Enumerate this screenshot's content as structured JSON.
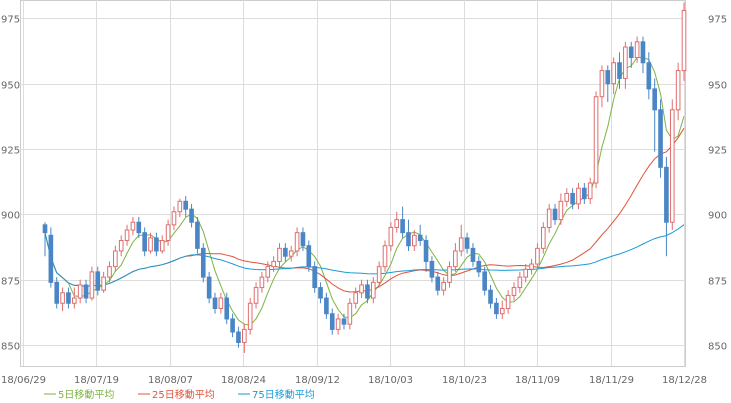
{
  "chart_data": {
    "type": "candlestick",
    "x_ticks": [
      "18/06/29",
      "18/07/19",
      "18/08/07",
      "18/08/24",
      "18/09/12",
      "18/10/03",
      "18/10/23",
      "18/11/09",
      "18/11/29",
      "18/12/28"
    ],
    "y_ticks": [
      850,
      875,
      900,
      925,
      950,
      975
    ],
    "ylim": [
      842,
      982
    ],
    "grid": true,
    "legend_position": "bottom-left",
    "legend": [
      {
        "name": "5日移動平均",
        "color": "#7cb342"
      },
      {
        "name": "25日移動平均",
        "color": "#e0533a"
      },
      {
        "name": "75日移動平均",
        "color": "#1a9ad6"
      }
    ],
    "up_color": "#e06d6d",
    "down_color": "#4a86c5",
    "candles": [
      [
        896,
        893,
        884,
        897
      ],
      [
        892,
        874,
        872,
        895
      ],
      [
        874,
        866,
        864,
        876
      ],
      [
        866,
        870,
        863,
        872
      ],
      [
        870,
        866,
        864,
        872
      ],
      [
        866,
        868,
        864,
        872
      ],
      [
        868,
        873,
        866,
        875
      ],
      [
        873,
        868,
        866,
        875
      ],
      [
        868,
        878,
        867,
        880
      ],
      [
        878,
        871,
        869,
        880
      ],
      [
        871,
        876,
        870,
        878
      ],
      [
        876,
        880,
        874,
        882
      ],
      [
        880,
        886,
        878,
        888
      ],
      [
        886,
        890,
        884,
        892
      ],
      [
        890,
        894,
        888,
        896
      ],
      [
        894,
        897,
        892,
        899
      ],
      [
        897,
        893,
        891,
        899
      ],
      [
        893,
        886,
        884,
        895
      ],
      [
        886,
        891,
        885,
        893
      ],
      [
        891,
        886,
        884,
        893
      ],
      [
        886,
        890,
        885,
        892
      ],
      [
        890,
        896,
        888,
        898
      ],
      [
        896,
        901,
        894,
        903
      ],
      [
        901,
        905,
        899,
        906
      ],
      [
        905,
        902,
        899,
        907
      ],
      [
        902,
        897,
        895,
        904
      ],
      [
        897,
        887,
        885,
        899
      ],
      [
        887,
        876,
        874,
        889
      ],
      [
        876,
        868,
        866,
        878
      ],
      [
        868,
        864,
        862,
        870
      ],
      [
        864,
        868,
        862,
        870
      ],
      [
        868,
        860,
        858,
        870
      ],
      [
        860,
        855,
        853,
        862
      ],
      [
        855,
        851,
        849,
        857
      ],
      [
        851,
        856,
        847,
        858
      ],
      [
        856,
        866,
        854,
        868
      ],
      [
        866,
        872,
        864,
        874
      ],
      [
        872,
        876,
        870,
        878
      ],
      [
        876,
        880,
        874,
        882
      ],
      [
        880,
        882,
        878,
        884
      ],
      [
        882,
        887,
        880,
        889
      ],
      [
        887,
        884,
        882,
        889
      ],
      [
        884,
        886,
        882,
        888
      ],
      [
        886,
        893,
        884,
        895
      ],
      [
        893,
        888,
        886,
        895
      ],
      [
        888,
        880,
        878,
        890
      ],
      [
        880,
        872,
        870,
        882
      ],
      [
        872,
        868,
        866,
        874
      ],
      [
        868,
        862,
        860,
        870
      ],
      [
        862,
        856,
        854,
        864
      ],
      [
        856,
        860,
        854,
        862
      ],
      [
        860,
        858,
        856,
        862
      ],
      [
        858,
        866,
        856,
        868
      ],
      [
        866,
        870,
        864,
        872
      ],
      [
        870,
        873,
        868,
        875
      ],
      [
        873,
        868,
        866,
        875
      ],
      [
        868,
        874,
        866,
        876
      ],
      [
        874,
        880,
        872,
        882
      ],
      [
        880,
        888,
        878,
        890
      ],
      [
        888,
        895,
        886,
        897
      ],
      [
        895,
        898,
        893,
        901
      ],
      [
        898,
        893,
        891,
        903
      ],
      [
        893,
        888,
        886,
        898
      ],
      [
        888,
        892,
        886,
        894
      ],
      [
        892,
        890,
        888,
        896
      ],
      [
        890,
        882,
        878,
        892
      ],
      [
        882,
        876,
        874,
        884
      ],
      [
        876,
        871,
        869,
        878
      ],
      [
        871,
        874,
        869,
        876
      ],
      [
        874,
        880,
        872,
        882
      ],
      [
        880,
        886,
        878,
        889
      ],
      [
        886,
        891,
        884,
        896
      ],
      [
        891,
        887,
        885,
        893
      ],
      [
        887,
        882,
        880,
        889
      ],
      [
        882,
        878,
        876,
        884
      ],
      [
        878,
        871,
        869,
        880
      ],
      [
        871,
        866,
        864,
        873
      ],
      [
        866,
        862,
        860,
        868
      ],
      [
        862,
        864,
        860,
        867
      ],
      [
        864,
        869,
        862,
        871
      ],
      [
        869,
        872,
        867,
        874
      ],
      [
        872,
        876,
        870,
        878
      ],
      [
        876,
        879,
        874,
        881
      ],
      [
        879,
        881,
        877,
        883
      ],
      [
        881,
        887,
        879,
        889
      ],
      [
        887,
        895,
        885,
        897
      ],
      [
        895,
        902,
        893,
        904
      ],
      [
        902,
        898,
        896,
        904
      ],
      [
        898,
        905,
        896,
        908
      ],
      [
        905,
        908,
        903,
        910
      ],
      [
        908,
        904,
        902,
        910
      ],
      [
        904,
        910,
        902,
        912
      ],
      [
        910,
        906,
        904,
        912
      ],
      [
        906,
        912,
        904,
        914
      ],
      [
        912,
        945,
        910,
        947
      ],
      [
        945,
        955,
        941,
        957
      ],
      [
        955,
        950,
        943,
        957
      ],
      [
        950,
        958,
        946,
        960
      ],
      [
        958,
        952,
        948,
        962
      ],
      [
        952,
        964,
        948,
        966
      ],
      [
        964,
        960,
        956,
        966
      ],
      [
        960,
        966,
        958,
        968
      ],
      [
        966,
        958,
        954,
        968
      ],
      [
        958,
        948,
        944,
        962
      ],
      [
        948,
        940,
        924,
        952
      ],
      [
        940,
        918,
        914,
        944
      ],
      [
        918,
        897,
        884,
        922
      ],
      [
        897,
        940,
        894,
        944
      ],
      [
        940,
        955,
        936,
        958
      ],
      [
        955,
        978,
        951,
        981
      ]
    ]
  }
}
